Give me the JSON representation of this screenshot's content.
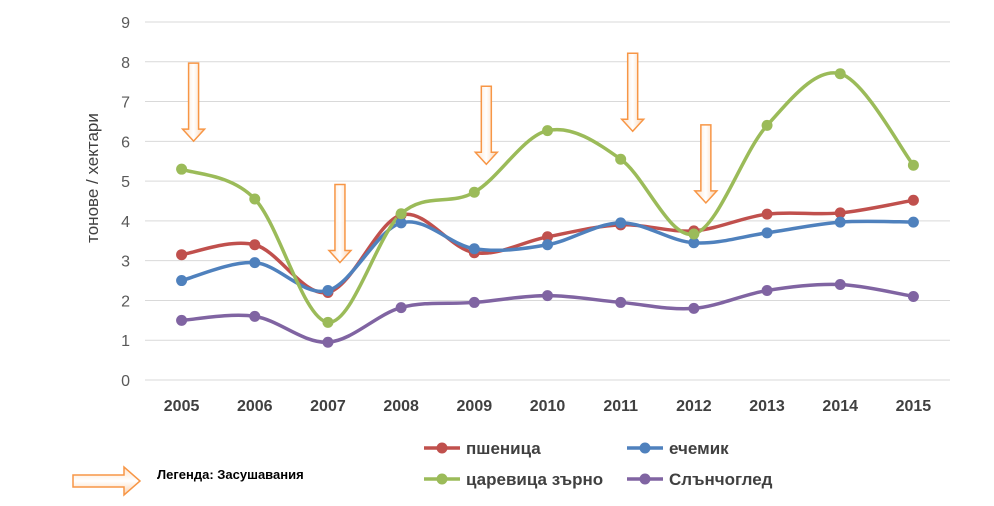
{
  "chart_data": {
    "type": "line",
    "ylabel": "тонове / хектари",
    "xlabel": "",
    "ylim": [
      0,
      9
    ],
    "yticks": [
      "0",
      "1",
      "2",
      "3",
      "4",
      "5",
      "6",
      "7",
      "8",
      "9"
    ],
    "categories": [
      "2005",
      "2006",
      "2007",
      "2008",
      "2009",
      "2010",
      "2011",
      "2012",
      "2013",
      "2014",
      "2015"
    ],
    "grid": "horizontal",
    "legend_position": "bottom",
    "series": [
      {
        "name": "пшеница",
        "color": "#c0504d",
        "values": [
          3.15,
          3.4,
          2.2,
          4.15,
          3.2,
          3.6,
          3.9,
          3.75,
          4.17,
          4.2,
          4.52
        ]
      },
      {
        "name": "ечемик",
        "color": "#4f81bd",
        "values": [
          2.5,
          2.95,
          2.25,
          3.95,
          3.3,
          3.4,
          3.95,
          3.45,
          3.7,
          3.97,
          3.97
        ]
      },
      {
        "name": "царевица зърно",
        "color": "#9bbb59",
        "values": [
          5.3,
          4.55,
          1.45,
          4.18,
          4.72,
          6.27,
          5.55,
          3.67,
          6.4,
          7.7,
          5.4
        ]
      },
      {
        "name": "Слънчоглед",
        "color": "#8064a2",
        "values": [
          1.5,
          1.6,
          0.95,
          1.82,
          1.95,
          2.12,
          1.95,
          1.8,
          2.25,
          2.4,
          2.1
        ]
      }
    ],
    "annotations": {
      "drought_years": [
        "2005",
        "2007",
        "2009",
        "2011",
        "2012"
      ],
      "drought_legend": "Легенда: Засушавания",
      "arrow_color": "#f79646"
    }
  }
}
